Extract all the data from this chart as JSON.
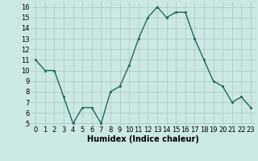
{
  "x": [
    0,
    1,
    2,
    3,
    4,
    5,
    6,
    7,
    8,
    9,
    10,
    11,
    12,
    13,
    14,
    15,
    16,
    17,
    18,
    19,
    20,
    21,
    22,
    23
  ],
  "y": [
    11,
    10,
    10,
    7.5,
    5,
    6.5,
    6.5,
    5,
    8,
    8.5,
    10.5,
    13,
    15,
    16,
    15,
    15.5,
    15.5,
    13,
    11,
    9,
    8.5,
    7,
    7.5,
    6.5
  ],
  "line_color": "#1a6b5a",
  "marker_color": "#1a6b5a",
  "bg_color": "#cce8e3",
  "grid_color": "#aacccc",
  "xlabel": "Humidex (Indice chaleur)",
  "xlabel_fontsize": 7,
  "tick_fontsize": 6,
  "xlim": [
    -0.5,
    23.5
  ],
  "ylim": [
    4.8,
    16.5
  ],
  "yticks": [
    5,
    6,
    7,
    8,
    9,
    10,
    11,
    12,
    13,
    14,
    15,
    16
  ],
  "xticks": [
    0,
    1,
    2,
    3,
    4,
    5,
    6,
    7,
    8,
    9,
    10,
    11,
    12,
    13,
    14,
    15,
    16,
    17,
    18,
    19,
    20,
    21,
    22,
    23
  ]
}
